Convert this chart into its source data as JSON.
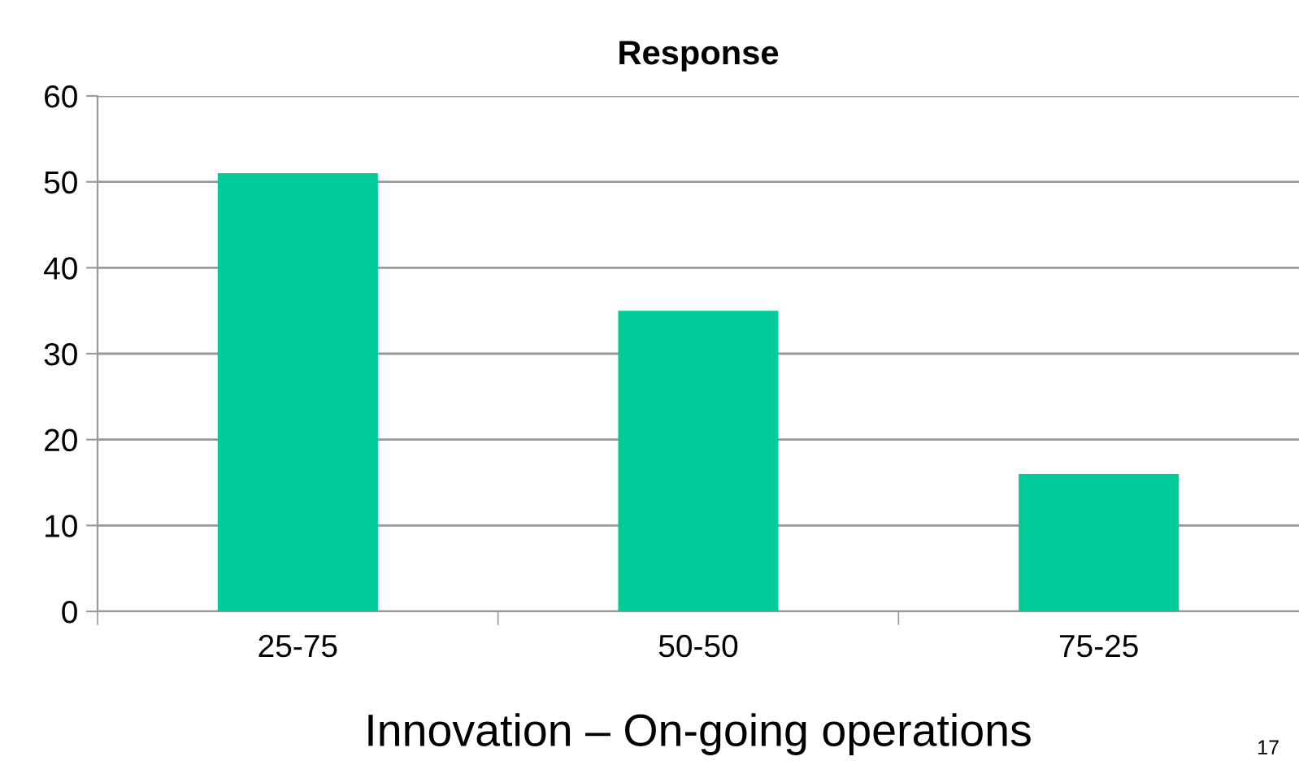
{
  "chart_data": {
    "type": "bar",
    "title": "Response",
    "xlabel": "Innovation – On-going operations",
    "categories": [
      "25-75",
      "50-50",
      "75-25"
    ],
    "values": [
      51,
      35,
      16
    ],
    "color": "#00cc99",
    "ylim": [
      0,
      60
    ],
    "yticks": [
      0,
      10,
      20,
      30,
      40,
      50,
      60
    ],
    "grid": "y",
    "annotations": [
      "17"
    ]
  }
}
